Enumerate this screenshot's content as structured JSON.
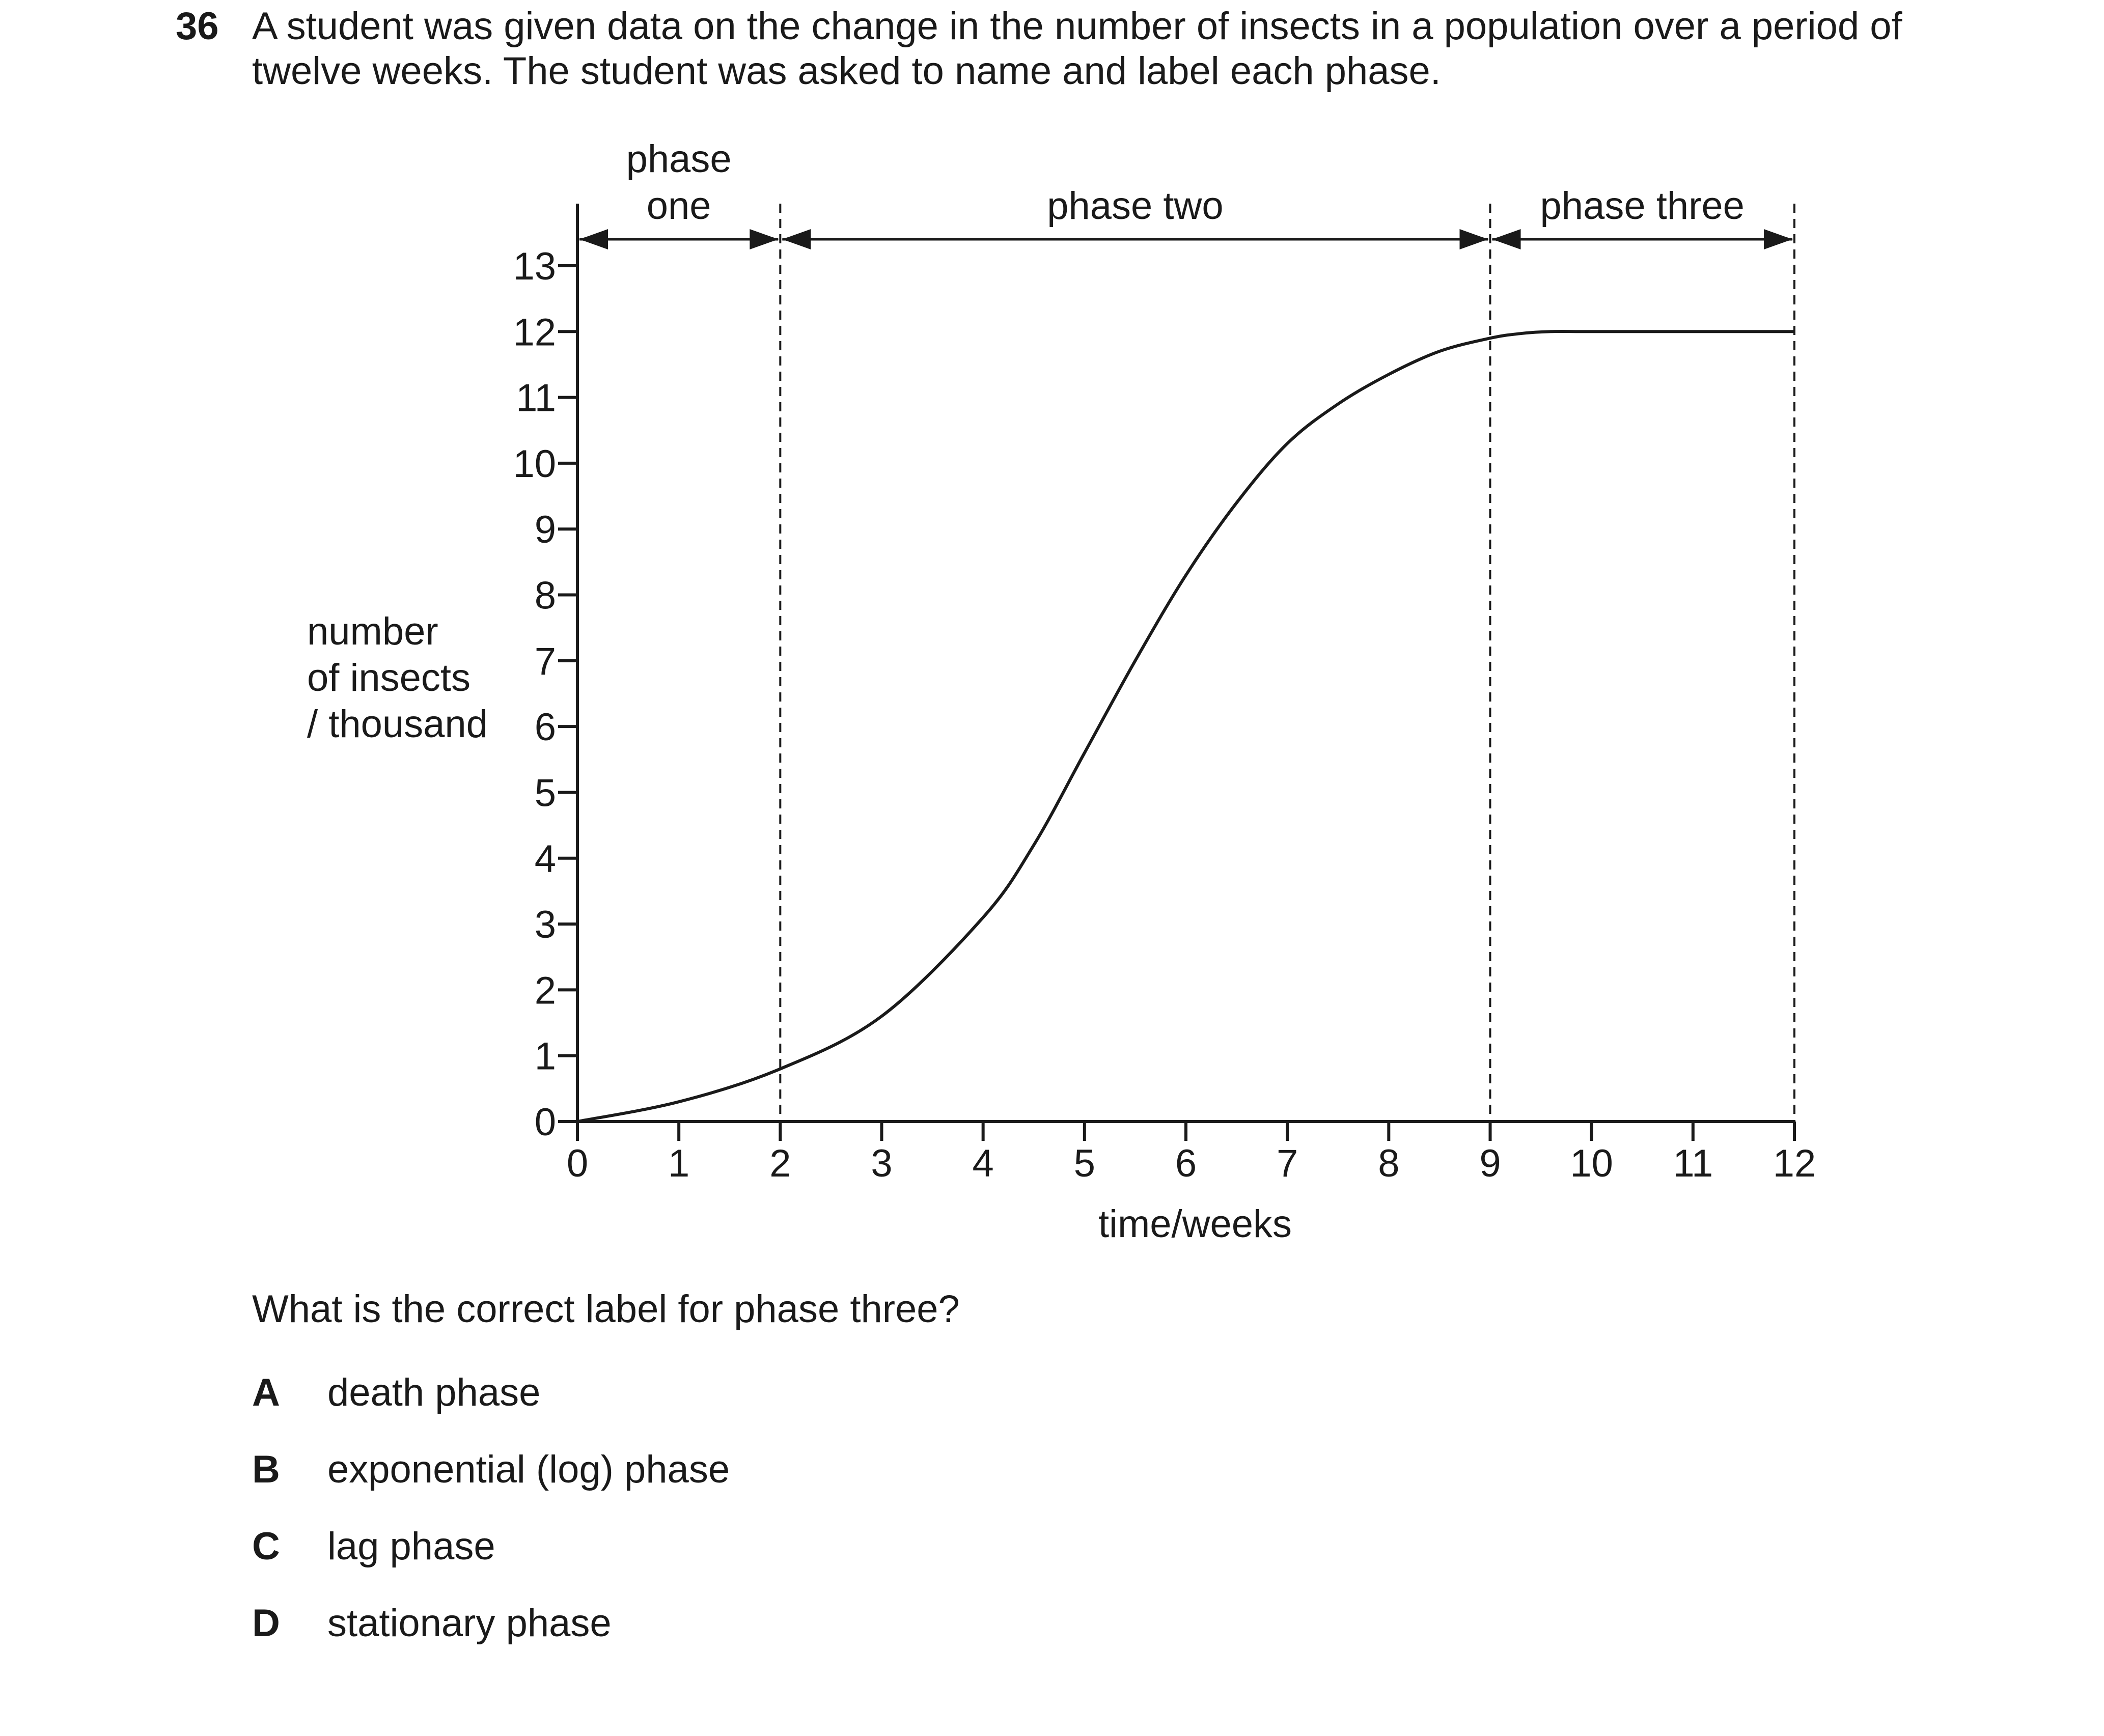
{
  "question": {
    "number": "36",
    "stem_lines": [
      "A student was given data on the change in the number of insects in a population over a period of",
      "twelve weeks. The student was asked to name and label each phase."
    ],
    "prompt": "What is the correct label for phase three?",
    "options": [
      {
        "letter": "A",
        "text": "death phase"
      },
      {
        "letter": "B",
        "text": "exponential (log) phase"
      },
      {
        "letter": "C",
        "text": "lag phase"
      },
      {
        "letter": "D",
        "text": "stationary phase"
      }
    ]
  },
  "chart_data": {
    "type": "line",
    "xlabel": "time / weeks",
    "ylabel_lines": [
      "number",
      "of insects",
      "/ thousand"
    ],
    "xlim": [
      0,
      12
    ],
    "ylim": [
      0,
      13
    ],
    "x_ticks": [
      0,
      1,
      2,
      3,
      4,
      5,
      6,
      7,
      8,
      9,
      10,
      11,
      12
    ],
    "y_ticks": [
      0,
      1,
      2,
      3,
      4,
      5,
      6,
      7,
      8,
      9,
      10,
      11,
      12,
      13
    ],
    "grid": false,
    "series": [
      {
        "x": [
          0,
          1,
          2,
          3,
          4,
          4.5,
          5,
          5.5,
          6,
          6.5,
          7,
          7.5,
          8,
          8.5,
          9,
          9.3,
          9.6,
          10,
          11,
          12
        ],
        "y": [
          0,
          0.3,
          0.8,
          1.6,
          3.1,
          4.2,
          5.6,
          7.0,
          8.3,
          9.4,
          10.3,
          10.9,
          11.35,
          11.7,
          11.9,
          11.97,
          12.0,
          12.0,
          12.0,
          12.0
        ]
      }
    ],
    "phase_boundaries": [
      2,
      9,
      12
    ],
    "phases": [
      {
        "label_lines": [
          "phase",
          "one"
        ],
        "start": 0,
        "end": 2
      },
      {
        "label_lines": [
          "phase two"
        ],
        "start": 2,
        "end": 9
      },
      {
        "label_lines": [
          "phase three"
        ],
        "start": 9,
        "end": 12
      }
    ]
  }
}
